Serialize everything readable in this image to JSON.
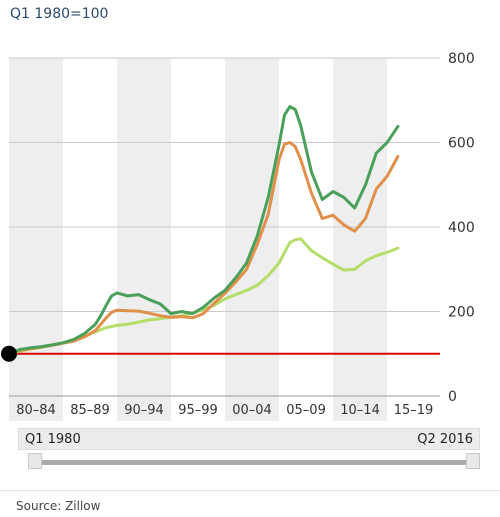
{
  "header": {
    "unit_label": "Q1 1980=100"
  },
  "chart_data": {
    "type": "line",
    "ylim": [
      0,
      800
    ],
    "y_ticks": [
      0,
      200,
      400,
      600,
      800
    ],
    "x_range": [
      1980.0,
      2019.9
    ],
    "x_tick_labels": [
      {
        "label": "80–84",
        "start": 1980,
        "end": 1985
      },
      {
        "label": "85–89",
        "start": 1985,
        "end": 1990
      },
      {
        "label": "90–94",
        "start": 1990,
        "end": 1995
      },
      {
        "label": "95–99",
        "start": 1995,
        "end": 2000
      },
      {
        "label": "00–04",
        "start": 2000,
        "end": 2005
      },
      {
        "label": "05–09",
        "start": 2005,
        "end": 2010
      },
      {
        "label": "10–14",
        "start": 2010,
        "end": 2015
      },
      {
        "label": "15–19",
        "start": 2015,
        "end": 2020
      }
    ],
    "shaded_periods": [
      [
        1980,
        1985
      ],
      [
        1990,
        1995
      ],
      [
        2000,
        2005
      ],
      [
        2010,
        2015
      ]
    ],
    "baseline": {
      "value": 100,
      "color": "#e00000"
    },
    "start_marker": {
      "x": 1980.0,
      "y": 100
    },
    "grid": true,
    "series": [
      {
        "color": "#4aa05a",
        "x": [
          1980,
          1981,
          1982,
          1983,
          1984,
          1985,
          1986,
          1987,
          1988,
          1988.5,
          1989,
          1989.5,
          1990,
          1991,
          1992,
          1993,
          1994,
          1995,
          1996,
          1997,
          1998,
          1999,
          2000,
          2001,
          2002,
          2003,
          2004,
          2005,
          2005.5,
          2006,
          2006.5,
          2007,
          2008,
          2009,
          2010,
          2011,
          2012,
          2013,
          2014,
          2015,
          2016
        ],
        "values": [
          100,
          110,
          114,
          117,
          121,
          126,
          134,
          148,
          170,
          190,
          215,
          237,
          244,
          237,
          240,
          228,
          218,
          195,
          200,
          195,
          210,
          232,
          250,
          280,
          315,
          380,
          470,
          595,
          665,
          685,
          678,
          640,
          530,
          465,
          484,
          470,
          445,
          500,
          575,
          600,
          638
        ]
      },
      {
        "color": "#e0904a",
        "x": [
          1980,
          1981,
          1982,
          1983,
          1984,
          1985,
          1986,
          1987,
          1988,
          1988.5,
          1989,
          1989.5,
          1990,
          1991,
          1992,
          1993,
          1994,
          1995,
          1996,
          1997,
          1998,
          1999,
          2000,
          2001,
          2002,
          2003,
          2004,
          2005,
          2005.5,
          2006,
          2006.5,
          2007,
          2008,
          2009,
          2010,
          2011,
          2012,
          2013,
          2014,
          2015,
          2016
        ],
        "values": [
          100,
          108,
          112,
          116,
          120,
          125,
          130,
          140,
          155,
          170,
          185,
          198,
          203,
          202,
          201,
          196,
          190,
          186,
          188,
          185,
          195,
          220,
          243,
          270,
          300,
          360,
          430,
          560,
          596,
          600,
          590,
          560,
          480,
          420,
          428,
          405,
          390,
          420,
          490,
          520,
          567
        ]
      },
      {
        "color": "#b5dd6a",
        "x": [
          1980,
          1981,
          1982,
          1983,
          1984,
          1985,
          1986,
          1987,
          1988,
          1989,
          1990,
          1991,
          1992,
          1993,
          1994,
          1995,
          1996,
          1997,
          1998,
          1999,
          2000,
          2001,
          2002,
          2003,
          2004,
          2005,
          2005.5,
          2006,
          2006.5,
          2007,
          2008,
          2009,
          2010,
          2011,
          2012,
          2013,
          2014,
          2015,
          2016
        ],
        "values": [
          100,
          106,
          111,
          115,
          120,
          126,
          133,
          141,
          152,
          162,
          167,
          170,
          175,
          180,
          183,
          187,
          190,
          196,
          205,
          215,
          230,
          240,
          250,
          262,
          285,
          315,
          340,
          363,
          370,
          372,
          344,
          327,
          312,
          298,
          300,
          320,
          332,
          340,
          350
        ]
      }
    ]
  },
  "range_selector": {
    "start_label": "Q1 1980",
    "end_label": "Q2 2016"
  },
  "footer": {
    "source": "Source: Zillow"
  }
}
